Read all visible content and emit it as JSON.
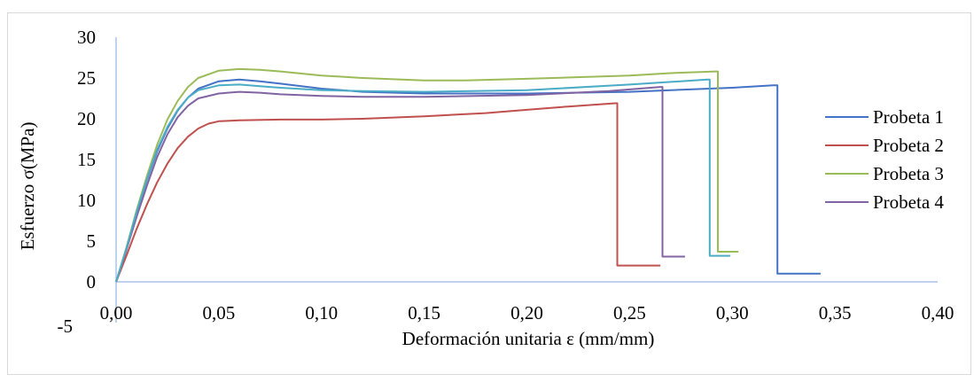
{
  "chart_data": {
    "type": "line",
    "title": "",
    "xlabel": "Deformación unitaria ε (mm/mm)",
    "ylabel": "Esfuerzo σ(MPa)",
    "xlim": [
      0,
      0.4
    ],
    "ylim": [
      -5,
      30
    ],
    "x_ticks": [
      "0,00",
      "0,05",
      "0,10",
      "0,15",
      "0,20",
      "0,25",
      "0,30",
      "0,35",
      "0,40"
    ],
    "y_ticks": [
      "-5",
      "0",
      "5",
      "10",
      "15",
      "20",
      "25",
      "30"
    ],
    "grid": false,
    "legend_position": "right",
    "series": [
      {
        "name": "Probeta 1",
        "color": "#4472c4",
        "points": [
          [
            0,
            0
          ],
          [
            0.005,
            4
          ],
          [
            0.01,
            8.5
          ],
          [
            0.015,
            12.5
          ],
          [
            0.02,
            16
          ],
          [
            0.025,
            18.8
          ],
          [
            0.03,
            21
          ],
          [
            0.035,
            22.6
          ],
          [
            0.04,
            23.7
          ],
          [
            0.05,
            24.6
          ],
          [
            0.06,
            24.8
          ],
          [
            0.07,
            24.6
          ],
          [
            0.08,
            24.3
          ],
          [
            0.1,
            23.7
          ],
          [
            0.12,
            23.3
          ],
          [
            0.15,
            23.1
          ],
          [
            0.2,
            23.1
          ],
          [
            0.25,
            23.3
          ],
          [
            0.3,
            23.8
          ],
          [
            0.32,
            24.1
          ],
          [
            0.322,
            24.1
          ],
          [
            0.322,
            1
          ],
          [
            0.343,
            1
          ]
        ]
      },
      {
        "name": "Probeta 2",
        "color": "#c0504d",
        "points": [
          [
            0,
            0
          ],
          [
            0.005,
            3.2
          ],
          [
            0.01,
            6.5
          ],
          [
            0.015,
            9.5
          ],
          [
            0.02,
            12.2
          ],
          [
            0.025,
            14.5
          ],
          [
            0.03,
            16.4
          ],
          [
            0.035,
            17.8
          ],
          [
            0.04,
            18.8
          ],
          [
            0.045,
            19.4
          ],
          [
            0.05,
            19.7
          ],
          [
            0.06,
            19.8
          ],
          [
            0.08,
            19.9
          ],
          [
            0.1,
            19.9
          ],
          [
            0.12,
            20
          ],
          [
            0.15,
            20.3
          ],
          [
            0.18,
            20.7
          ],
          [
            0.2,
            21.1
          ],
          [
            0.22,
            21.5
          ],
          [
            0.243,
            21.9
          ],
          [
            0.244,
            21.9
          ],
          [
            0.244,
            2
          ],
          [
            0.265,
            2
          ]
        ]
      },
      {
        "name": "Probeta 3",
        "color": "#9bbb59",
        "points": [
          [
            0,
            0
          ],
          [
            0.005,
            4.2
          ],
          [
            0.01,
            8.8
          ],
          [
            0.015,
            13
          ],
          [
            0.02,
            16.8
          ],
          [
            0.025,
            19.9
          ],
          [
            0.03,
            22.2
          ],
          [
            0.035,
            23.9
          ],
          [
            0.04,
            25
          ],
          [
            0.05,
            25.9
          ],
          [
            0.06,
            26.1
          ],
          [
            0.07,
            26
          ],
          [
            0.08,
            25.8
          ],
          [
            0.1,
            25.3
          ],
          [
            0.12,
            25
          ],
          [
            0.15,
            24.7
          ],
          [
            0.17,
            24.7
          ],
          [
            0.2,
            24.9
          ],
          [
            0.25,
            25.3
          ],
          [
            0.27,
            25.6
          ],
          [
            0.292,
            25.8
          ],
          [
            0.293,
            25.8
          ],
          [
            0.293,
            3.7
          ],
          [
            0.303,
            3.7
          ]
        ]
      },
      {
        "name": "Probeta 4",
        "color": "#8064a2",
        "points": [
          [
            0,
            0
          ],
          [
            0.005,
            3.9
          ],
          [
            0.01,
            8
          ],
          [
            0.015,
            11.8
          ],
          [
            0.02,
            15.3
          ],
          [
            0.025,
            18.1
          ],
          [
            0.03,
            20.2
          ],
          [
            0.035,
            21.6
          ],
          [
            0.04,
            22.5
          ],
          [
            0.05,
            23.1
          ],
          [
            0.06,
            23.3
          ],
          [
            0.07,
            23.2
          ],
          [
            0.08,
            23
          ],
          [
            0.1,
            22.8
          ],
          [
            0.12,
            22.7
          ],
          [
            0.15,
            22.7
          ],
          [
            0.2,
            22.9
          ],
          [
            0.24,
            23.4
          ],
          [
            0.265,
            23.9
          ],
          [
            0.266,
            23.9
          ],
          [
            0.266,
            3.1
          ],
          [
            0.277,
            3.1
          ]
        ]
      },
      {
        "name": "",
        "color": "#4bacc6",
        "points": [
          [
            0,
            0
          ],
          [
            0.005,
            4.1
          ],
          [
            0.01,
            8.6
          ],
          [
            0.015,
            12.6
          ],
          [
            0.02,
            16.2
          ],
          [
            0.025,
            19
          ],
          [
            0.03,
            21.1
          ],
          [
            0.035,
            22.6
          ],
          [
            0.04,
            23.5
          ],
          [
            0.05,
            24.1
          ],
          [
            0.06,
            24.2
          ],
          [
            0.07,
            24
          ],
          [
            0.08,
            23.8
          ],
          [
            0.1,
            23.5
          ],
          [
            0.12,
            23.4
          ],
          [
            0.15,
            23.3
          ],
          [
            0.2,
            23.5
          ],
          [
            0.25,
            24.2
          ],
          [
            0.288,
            24.8
          ],
          [
            0.289,
            24.8
          ],
          [
            0.289,
            3.2
          ],
          [
            0.299,
            3.2
          ]
        ]
      }
    ]
  }
}
